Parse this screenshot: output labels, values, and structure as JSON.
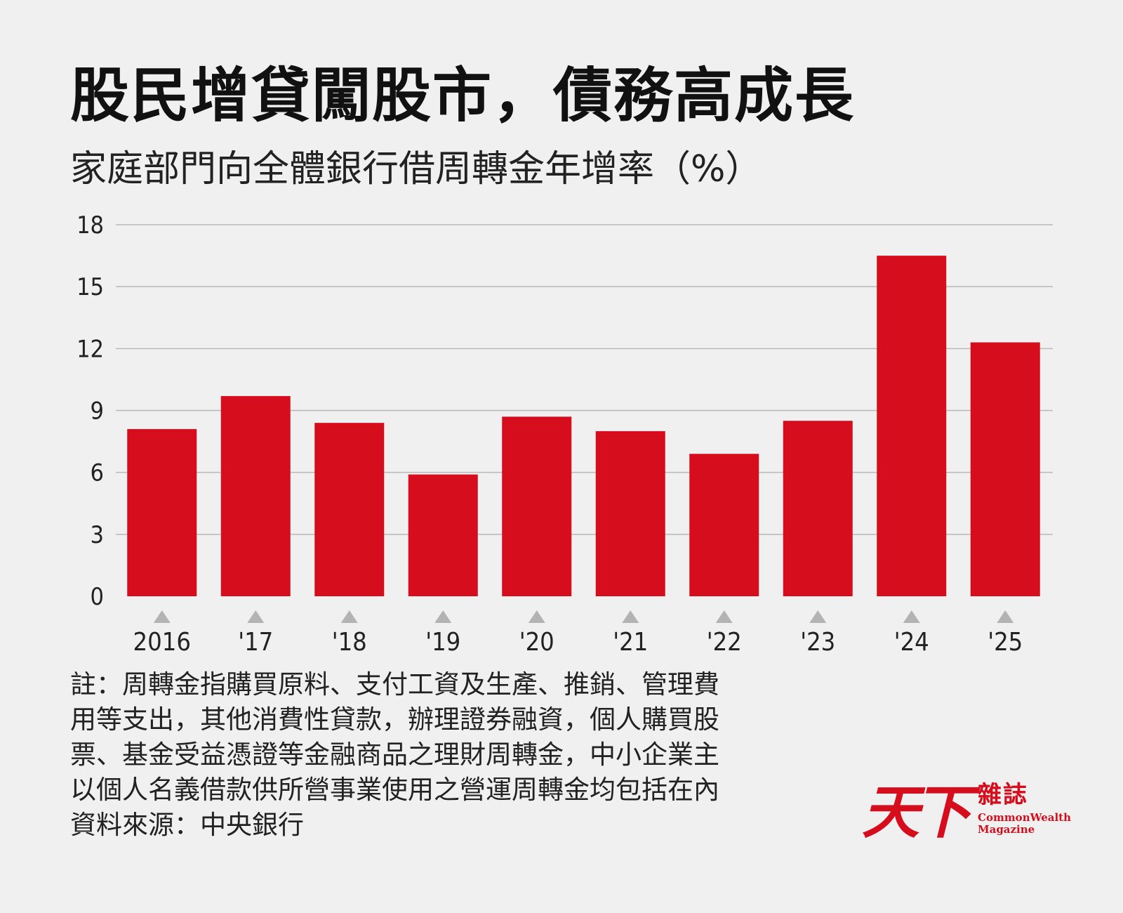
{
  "header": {
    "title": "股民增貸闖股市，債務高成長",
    "subtitle": "家庭部門向全體銀行借周轉金年增率（%）"
  },
  "colors": {
    "bar": "#d50d1c",
    "grid": "#b8b8b8",
    "marker": "#b3b3b3",
    "background": "#f0f0f0"
  },
  "chart_data": {
    "type": "bar",
    "title": "股民增貸闖股市，債務高成長",
    "subtitle": "家庭部門向全體銀行借周轉金年增率（%）",
    "ylabel": "",
    "xlabel": "",
    "categories": [
      "2016",
      "'17",
      "'18",
      "'19",
      "'20",
      "'21",
      "'22",
      "'23",
      "'24",
      "'25"
    ],
    "values": [
      8.1,
      9.7,
      8.4,
      5.9,
      8.7,
      8.0,
      6.9,
      8.5,
      16.5,
      12.3
    ],
    "ylim": [
      0,
      18
    ],
    "yticks": [
      0,
      3,
      6,
      9,
      12,
      15,
      18
    ],
    "grid": true,
    "legend": "none"
  },
  "notes": {
    "line1": "註：周轉金指購買原料、支付工資及生產、推銷、管理費",
    "line2": "用等支出，其他消費性貸款，辦理證券融資，個人購買股",
    "line3": "票、基金受益憑證等金融商品之理財周轉金，中小企業主",
    "line4": "以個人名義借款供所營事業使用之營運周轉金均包括在內",
    "source": "資料來源：中央銀行"
  },
  "logo": {
    "mark": "天下",
    "zh": "雜誌",
    "en_line1": "CommonWealth",
    "en_line2": "Magazine"
  }
}
